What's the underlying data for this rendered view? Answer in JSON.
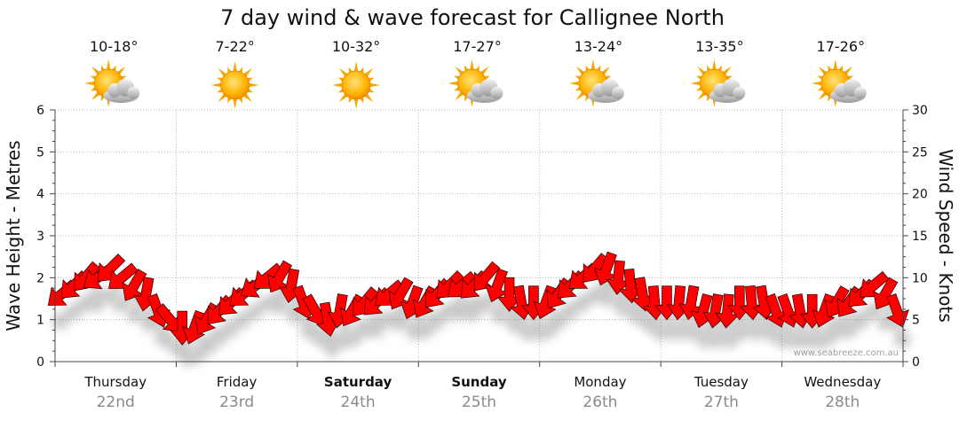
{
  "title": "7 day wind & wave forecast for Callignee North",
  "watermark": "www.seabreeze.com.au",
  "days": [
    {
      "name": "Thursday",
      "date": "22nd",
      "temp": "10-18°",
      "icon": "sun-cloud-icon",
      "bold": false
    },
    {
      "name": "Friday",
      "date": "23rd",
      "temp": "7-22°",
      "icon": "sun-icon",
      "bold": false
    },
    {
      "name": "Saturday",
      "date": "24th",
      "temp": "10-32°",
      "icon": "sun-icon",
      "bold": true
    },
    {
      "name": "Sunday",
      "date": "25th",
      "temp": "17-27°",
      "icon": "sun-cloud-icon",
      "bold": true
    },
    {
      "name": "Monday",
      "date": "26th",
      "temp": "13-24°",
      "icon": "sun-cloud-icon",
      "bold": false
    },
    {
      "name": "Tuesday",
      "date": "27th",
      "temp": "13-35°",
      "icon": "sun-cloud-icon",
      "bold": false
    },
    {
      "name": "Wednesday",
      "date": "28th",
      "temp": "17-26°",
      "icon": "sun-cloud-icon",
      "bold": false
    }
  ],
  "chart_data": {
    "type": "line",
    "title": "7 day wind & wave forecast for Callignee North",
    "left_axis": {
      "label": "Wave Height - Metres",
      "min": 0,
      "max": 6,
      "ticks": [
        0,
        1,
        2,
        3,
        4,
        5,
        6
      ]
    },
    "right_axis": {
      "label": "Wind Speed - Knots",
      "min": 0,
      "max": 30,
      "ticks": [
        0,
        5,
        10,
        15,
        20,
        25,
        30
      ]
    },
    "grid": true,
    "series": [
      {
        "type": "wind-arrows",
        "color": "#ff0000",
        "x_day": [
          0.0,
          0.1,
          0.2,
          0.3,
          0.4,
          0.5,
          0.6,
          0.7,
          0.8,
          0.9,
          1.0,
          1.1,
          1.2,
          1.3,
          1.4,
          1.5,
          1.6,
          1.7,
          1.8,
          1.9,
          2.0,
          2.1,
          2.2,
          2.3,
          2.4,
          2.5,
          2.6,
          2.7,
          2.8,
          2.9,
          3.0,
          3.1,
          3.2,
          3.3,
          3.4,
          3.5,
          3.6,
          3.7,
          3.8,
          3.9,
          4.0,
          4.1,
          4.2,
          4.3,
          4.4,
          4.5,
          4.6,
          4.7,
          4.8,
          4.9,
          5.0,
          5.1,
          5.2,
          5.3,
          5.4,
          5.5,
          5.6,
          5.7,
          5.8,
          5.9,
          6.0,
          6.1,
          6.2,
          6.3,
          6.4,
          6.5,
          6.6,
          6.7,
          6.8,
          6.9
        ],
        "speed_knots": [
          8,
          9,
          10,
          10,
          11,
          10,
          9,
          8,
          6,
          5,
          4,
          4,
          5,
          6,
          7,
          8,
          9,
          10,
          10,
          9,
          7,
          6,
          5,
          6,
          6,
          7,
          7,
          8,
          8,
          7,
          7,
          8,
          9,
          9,
          9,
          10,
          9,
          8,
          7,
          7,
          7,
          8,
          9,
          10,
          11,
          11,
          10,
          9,
          8,
          7,
          7,
          7,
          7,
          6,
          6,
          6,
          7,
          7,
          7,
          6,
          6,
          6,
          6,
          6,
          7,
          7,
          8,
          9,
          8,
          6
        ],
        "direction_deg": [
          40,
          45,
          50,
          35,
          45,
          40,
          60,
          80,
          110,
          130,
          90,
          70,
          60,
          50,
          45,
          40,
          35,
          40,
          60,
          80,
          110,
          120,
          100,
          80,
          60,
          50,
          45,
          40,
          60,
          70,
          60,
          50,
          45,
          40,
          45,
          50,
          70,
          90,
          100,
          90,
          70,
          55,
          45,
          40,
          50,
          70,
          85,
          95,
          100,
          95,
          90,
          85,
          80,
          75,
          80,
          85,
          90,
          95,
          100,
          110,
          110,
          100,
          90,
          70,
          60,
          55,
          45,
          40,
          60,
          110
        ]
      }
    ]
  }
}
